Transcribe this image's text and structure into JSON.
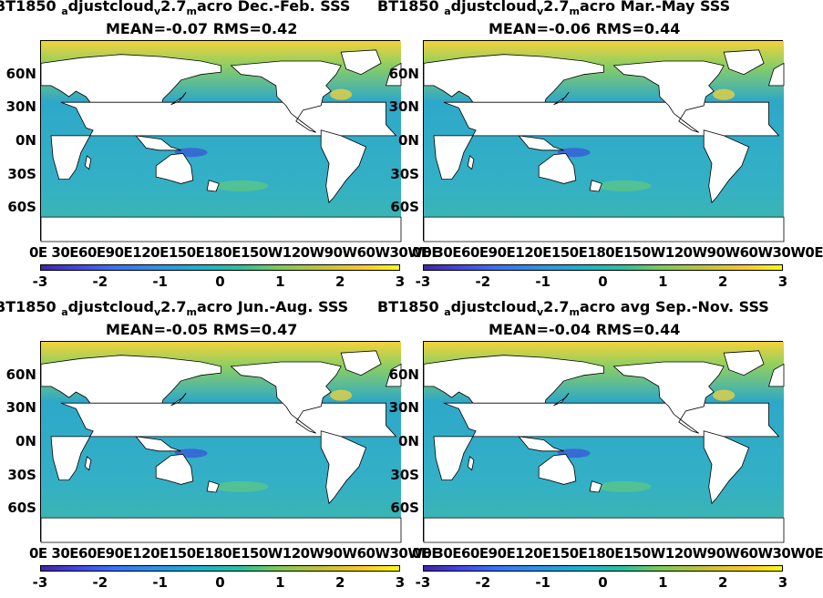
{
  "colors": {
    "ocean": "#2ea8c8",
    "land": "#ffffff",
    "high": "#f4d23a",
    "low": "#3a55d8"
  },
  "colorbar": {
    "ticks": [
      "-3",
      "-2",
      "-1",
      "0",
      "1",
      "2",
      "3"
    ],
    "min": -3,
    "max": 3
  },
  "lat_ticks": [
    "60N",
    "30N",
    "0N",
    "30S",
    "60S"
  ],
  "lon_ticks": "0E 30E60E90E120E150E180E150W120W90W60W30W0E",
  "chart_data": [
    {
      "type": "heatmap",
      "title_a": "BT1850",
      "title_b": "djustcloud",
      "title_c": "2.7",
      "title_d": "acro Dec.-Feb. SSS",
      "mean_label": "MEAN=-0.07",
      "rms_label": "RMS=0.42",
      "mean": -0.07,
      "rms": 0.42,
      "clim": [
        -3,
        3
      ]
    },
    {
      "type": "heatmap",
      "title_a": "BT1850",
      "title_b": "djustcloud",
      "title_c": "2.7",
      "title_d": "acro Mar.-May SSS",
      "mean_label": "MEAN=-0.06",
      "rms_label": "RMS=0.44",
      "mean": -0.06,
      "rms": 0.44,
      "clim": [
        -3,
        3
      ]
    },
    {
      "type": "heatmap",
      "title_a": "BT1850",
      "title_b": "djustcloud",
      "title_c": "2.7",
      "title_d": "acro Jun.-Aug. SSS",
      "mean_label": "MEAN=-0.05",
      "rms_label": "RMS=0.47",
      "mean": -0.05,
      "rms": 0.47,
      "clim": [
        -3,
        3
      ]
    },
    {
      "type": "heatmap",
      "title_a": "BT1850",
      "title_b": "djustcloud",
      "title_c": "2.7",
      "title_d": "acro avg Sep.-Nov. SSS",
      "mean_label": "MEAN=-0.04",
      "rms_label": "RMS=0.44",
      "mean": -0.04,
      "rms": 0.44,
      "clim": [
        -3,
        3
      ]
    }
  ]
}
